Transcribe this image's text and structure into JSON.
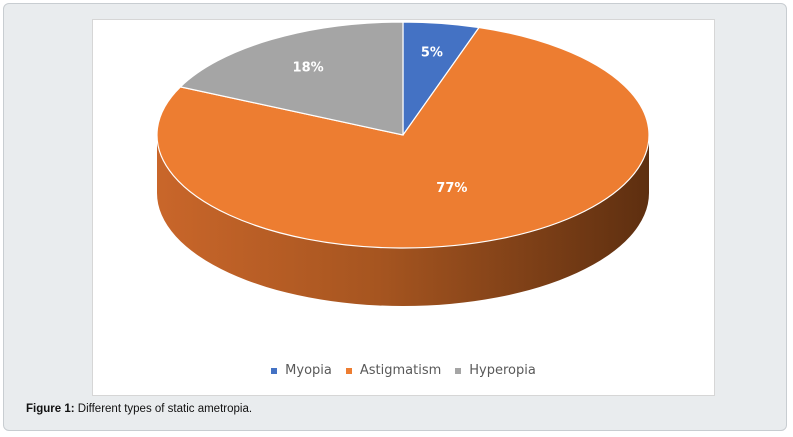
{
  "caption": {
    "label": "Figure 1:",
    "text": " Different types of static ametropia."
  },
  "chart_data": {
    "type": "pie",
    "style": "3d",
    "title": "",
    "slices": [
      {
        "name": "Myopia",
        "value": 5,
        "label": "5%",
        "color": "#4472c4",
        "side_color": "#2f528f"
      },
      {
        "name": "Astigmatism",
        "value": 77,
        "label": "77%",
        "color": "#ed7d31",
        "side_color": "#a5521c"
      },
      {
        "name": "Hyperopia",
        "value": 18,
        "label": "18%",
        "color": "#a5a5a5",
        "side_color": "#7b7b7b"
      }
    ],
    "legend": {
      "position": "bottom",
      "items": [
        "Myopia",
        "Astigmatism",
        "Hyperopia"
      ]
    }
  }
}
